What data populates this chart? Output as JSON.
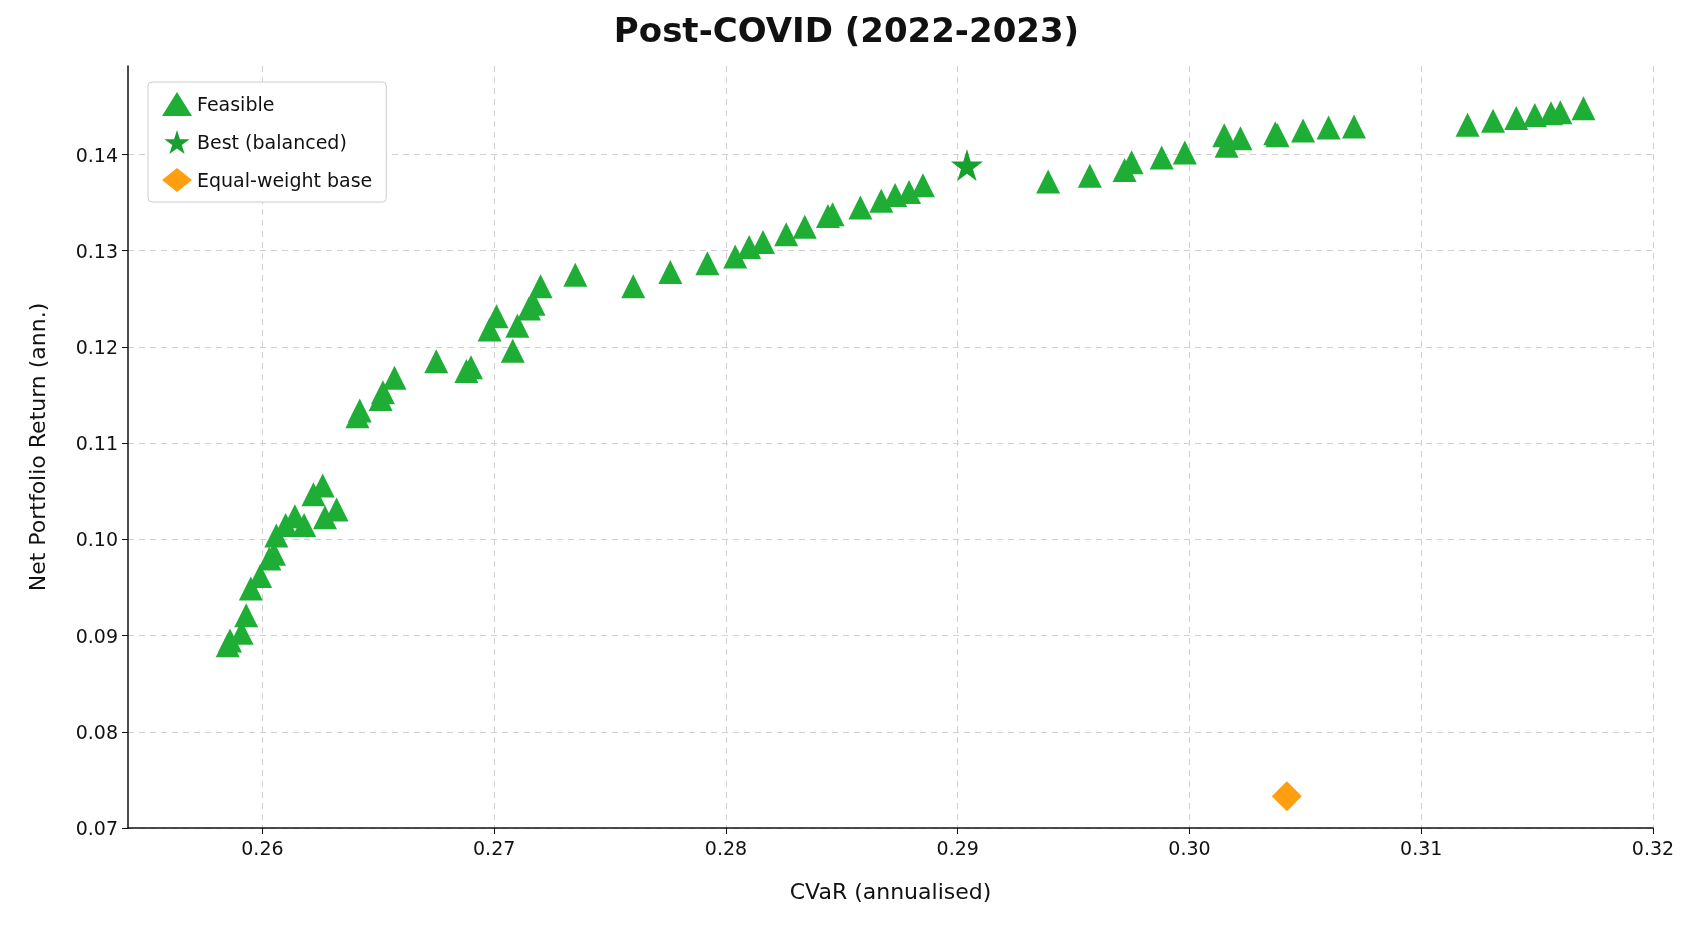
{
  "chart_data": {
    "type": "scatter",
    "title": "Post-COVID (2022-2023)",
    "xlabel": "CVaR (annualised)",
    "ylabel": "Net Portfolio Return (ann.)",
    "xlim": [
      0.2542,
      0.32
    ],
    "ylim": [
      0.07,
      0.1492
    ],
    "xticks": [
      0.26,
      0.27,
      0.28,
      0.29,
      {
        "value": 0.3,
        "label": "0.30"
      },
      0.31,
      0.32
    ],
    "yticks": [
      0.07,
      0.08,
      0.09,
      {
        "value": 0.1,
        "label": "0.10"
      },
      0.11,
      0.12,
      0.13,
      0.14
    ],
    "grid": true,
    "legend": "top left",
    "series": [
      {
        "name": "Feasible",
        "color": "#1fae35",
        "marker": "triangle",
        "x": [
          0.2585,
          0.2586,
          0.2591,
          0.2593,
          0.2595,
          0.2599,
          0.2603,
          0.2605,
          0.2606,
          0.261,
          0.2614,
          0.2618,
          0.2622,
          0.2626,
          0.2627,
          0.2632,
          0.2641,
          0.2642,
          0.2651,
          0.2652,
          0.2657,
          0.2675,
          0.2688,
          0.269,
          0.2698,
          0.2701,
          0.2708,
          0.271,
          0.2715,
          0.2717,
          0.272,
          0.2735,
          0.276,
          0.2776,
          0.2792,
          0.2804,
          0.281,
          0.2816,
          0.2826,
          0.2834,
          0.2844,
          0.2846,
          0.2858,
          0.2867,
          0.2873,
          0.2879,
          0.2885,
          0.2939,
          0.2957,
          0.2972,
          0.2975,
          0.2988,
          0.2998,
          0.3015,
          0.3016,
          0.3022,
          0.3037,
          0.3038,
          0.3049,
          0.306,
          0.3071,
          0.312,
          0.3131,
          0.3141,
          0.3149,
          0.3156,
          0.316,
          0.317
        ],
        "values": [
          0.089,
          0.0895,
          0.0903,
          0.0921,
          0.0949,
          0.0962,
          0.098,
          0.0985,
          0.1004,
          0.1015,
          0.1024,
          0.1015,
          0.1047,
          0.1056,
          0.1023,
          0.1031,
          0.1128,
          0.1134,
          0.1146,
          0.1153,
          0.1168,
          0.1185,
          0.1175,
          0.1179,
          0.1218,
          0.1232,
          0.1196,
          0.1222,
          0.124,
          0.1245,
          0.1263,
          0.1275,
          0.1263,
          0.1278,
          0.1287,
          0.1294,
          0.1304,
          0.1309,
          0.1317,
          0.1325,
          0.1336,
          0.1338,
          0.1345,
          0.1352,
          0.1358,
          0.1361,
          0.1368,
          0.1372,
          0.1378,
          0.1384,
          0.1392,
          0.1397,
          0.1402,
          0.142,
          0.1409,
          0.1417,
          0.1422,
          0.142,
          0.1425,
          0.1428,
          0.1429,
          0.1431,
          0.1435,
          0.1438,
          0.1441,
          0.1443,
          0.1444,
          0.1448
        ]
      },
      {
        "name": "Best (balanced)",
        "color": "#17a02e",
        "marker": "star",
        "x": [
          0.2904
        ],
        "values": [
          0.1389
        ]
      },
      {
        "name": "Equal-weight base",
        "color": "#ff9f10",
        "marker": "diamond",
        "x": [
          0.3042
        ],
        "values": [
          0.0733
        ]
      }
    ]
  }
}
